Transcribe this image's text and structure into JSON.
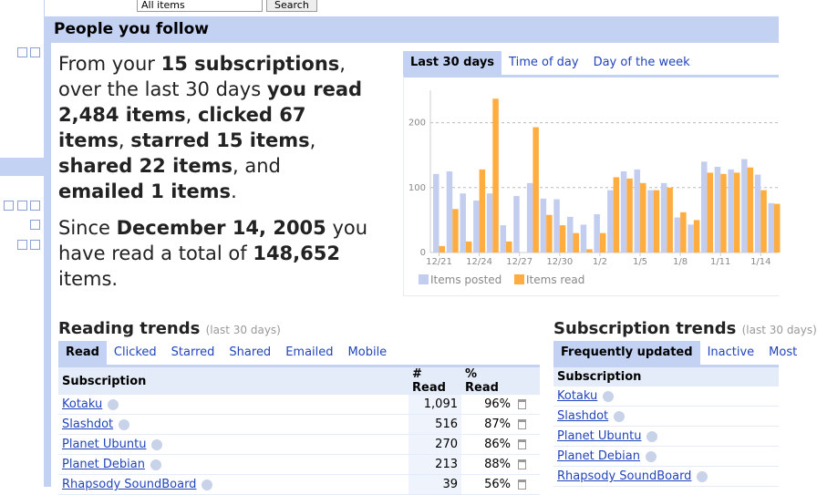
{
  "search": {
    "scope": "All items",
    "button": "Search"
  },
  "header": {
    "title": "People you follow"
  },
  "summary": {
    "paragraphs": [
      [
        {
          "text": "From your "
        },
        {
          "text": "15 subscriptions",
          "bold": true
        },
        {
          "text": ", over the last 30 days "
        },
        {
          "text": "you read 2,484 items",
          "bold": true
        },
        {
          "text": ", "
        },
        {
          "text": "clicked 67 items",
          "bold": true
        },
        {
          "text": ", "
        },
        {
          "text": "starred 15 items",
          "bold": true
        },
        {
          "text": ", "
        },
        {
          "text": "shared 22 items",
          "bold": true
        },
        {
          "text": ", and "
        },
        {
          "text": "emailed 1 items",
          "bold": true
        },
        {
          "text": "."
        }
      ],
      [
        {
          "text": "Since "
        },
        {
          "text": "December 14, 2005",
          "bold": true
        },
        {
          "text": " you have read a total of "
        },
        {
          "text": "148,652",
          "bold": true
        },
        {
          "text": " items."
        }
      ]
    ]
  },
  "chart_tabs": [
    {
      "label": "Last 30 days",
      "selected": true
    },
    {
      "label": "Time of day"
    },
    {
      "label": "Day of the week"
    }
  ],
  "chart_data": {
    "type": "bar",
    "categories": [
      "12/21",
      null,
      null,
      "12/24",
      null,
      null,
      "12/27",
      null,
      null,
      "12/30",
      null,
      null,
      "1/2",
      null,
      null,
      "1/5",
      null,
      null,
      "1/8",
      null,
      null,
      "1/11",
      null,
      null,
      "1/14",
      null
    ],
    "series": [
      {
        "name": "Items posted",
        "color": "#c3cdf0",
        "values": [
          121,
          125,
          91,
          80,
          91,
          42,
          87,
          107,
          83,
          82,
          55,
          43,
          59,
          96,
          125,
          128,
          96,
          107,
          54,
          43,
          140,
          132,
          128,
          144,
          120,
          76
        ]
      },
      {
        "name": "Items read",
        "color": "#ffad41",
        "values": [
          10,
          67,
          17,
          128,
          237,
          17,
          0,
          193,
          58,
          42,
          30,
          5,
          30,
          116,
          114,
          107,
          96,
          100,
          62,
          50,
          123,
          121,
          123,
          131,
          96,
          75
        ]
      }
    ],
    "ylim": [
      0,
      250
    ],
    "yticks": [
      0,
      100,
      200
    ],
    "grid": true,
    "legend": "bottom"
  },
  "reading_trends": {
    "title": "Reading trends",
    "subtitle": "(last 30 days)",
    "tabs": [
      {
        "label": "Read",
        "selected": true
      },
      {
        "label": "Clicked"
      },
      {
        "label": "Starred"
      },
      {
        "label": "Shared"
      },
      {
        "label": "Emailed"
      },
      {
        "label": "Mobile"
      }
    ],
    "columns": [
      "Subscription",
      "# Read",
      "% Read"
    ],
    "rows": [
      [
        "Kotaku",
        "1,091",
        "96%"
      ],
      [
        "Slashdot",
        "516",
        "87%"
      ],
      [
        "Planet Ubuntu",
        "270",
        "86%"
      ],
      [
        "Planet Debian",
        "213",
        "88%"
      ],
      [
        "Rhapsody SoundBoard",
        "39",
        "56%"
      ]
    ]
  },
  "subscription_trends": {
    "title": "Subscription trends",
    "subtitle": "(last 30 days)",
    "tabs": [
      {
        "label": "Frequently updated",
        "selected": true
      },
      {
        "label": "Inactive"
      },
      {
        "label": "Most"
      }
    ],
    "columns": [
      "Subscription"
    ],
    "rows": [
      [
        "Kotaku"
      ],
      [
        "Slashdot"
      ],
      [
        "Planet Ubuntu"
      ],
      [
        "Planet Debian"
      ],
      [
        "Rhapsody SoundBoard"
      ]
    ]
  }
}
